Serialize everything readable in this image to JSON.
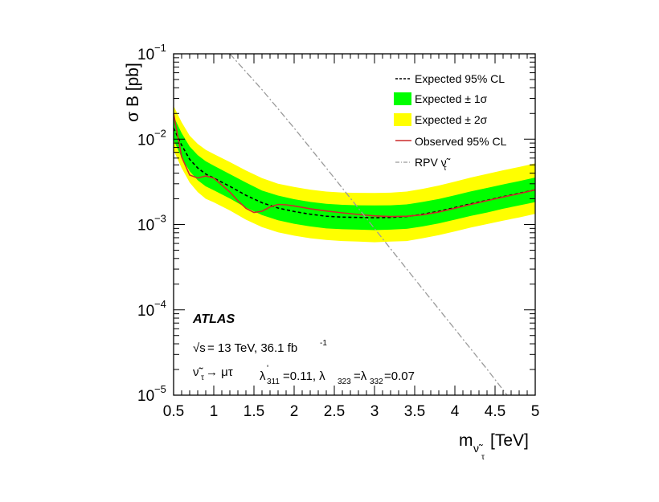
{
  "chart_data": {
    "type": "line",
    "ylabel": "σ B [pb]",
    "xlabel_main": "m",
    "xlabel_sub": "ν̃",
    "xlabel_subsub": "τ",
    "xlabel_unit": "[TeV]",
    "yscale": "log",
    "xlim": [
      0.5,
      5.0
    ],
    "ylim": [
      1e-05,
      0.1
    ],
    "xticks": [
      0.5,
      1,
      1.5,
      2,
      2.5,
      3,
      3.5,
      4,
      4.5,
      5
    ],
    "xtick_labels": [
      "0.5",
      "1",
      "1.5",
      "2",
      "2.5",
      "3",
      "3.5",
      "4",
      "4.5",
      "5"
    ],
    "yticks": [
      1e-05,
      0.0001,
      0.001,
      0.01,
      0.1
    ],
    "ytick_base": "10",
    "ytick_exps": [
      "−5",
      "−4",
      "−3",
      "−2",
      "−1"
    ],
    "grid": false,
    "legend_position": "top-right",
    "legend": [
      {
        "label": "Expected 95% CL",
        "style": "dashed-line",
        "color": "#000000"
      },
      {
        "label": "Expected ± 1σ",
        "style": "fill",
        "color": "#00ff00"
      },
      {
        "label": "Expected ± 2σ",
        "style": "fill",
        "color": "#ffff00"
      },
      {
        "label": "Observed 95% CL",
        "style": "line",
        "color": "#cc0000"
      },
      {
        "label": "RPV ν̃",
        "label_sub": "τ",
        "style": "dash-dot-line",
        "color": "#999999"
      }
    ],
    "annotations": {
      "experiment": "ATLAS",
      "energy_prefix": "√s",
      "energy": " = 13 TeV, 36.1 fb",
      "energy_sup": "-1",
      "process": "ν̃",
      "process_sub": "τ",
      "process_rest": " → μτ",
      "couplings_l311": "λ",
      "couplings_l311_sub": "311",
      "couplings_prime": "'",
      "couplings_text1": "=0.11, λ",
      "couplings_sub2": "323",
      "couplings_text2": "=λ",
      "couplings_sub3": "332",
      "couplings_text3": "=0.07"
    },
    "series": [
      {
        "name": "Expected 95% CL",
        "x": [
          0.5,
          0.6,
          0.7,
          0.8,
          0.9,
          1.0,
          1.2,
          1.4,
          1.6,
          1.8,
          2.0,
          2.2,
          2.4,
          2.6,
          2.8,
          3.0,
          3.2,
          3.4,
          3.6,
          3.8,
          4.0,
          4.2,
          4.4,
          4.6,
          4.8,
          5.0
        ],
        "y": [
          0.0135,
          0.0085,
          0.0058,
          0.0046,
          0.0039,
          0.0035,
          0.0028,
          0.0022,
          0.0018,
          0.00156,
          0.00142,
          0.00132,
          0.00125,
          0.00122,
          0.00121,
          0.0012,
          0.00121,
          0.00124,
          0.00132,
          0.00143,
          0.00158,
          0.00175,
          0.00192,
          0.00212,
          0.00232,
          0.00255
        ]
      },
      {
        "name": "Expected ± 1σ",
        "x": [
          0.5,
          0.6,
          0.7,
          0.8,
          0.9,
          1.0,
          1.2,
          1.4,
          1.6,
          1.8,
          2.0,
          2.2,
          2.4,
          2.6,
          2.8,
          3.0,
          3.2,
          3.4,
          3.6,
          3.8,
          4.0,
          4.2,
          4.4,
          4.6,
          4.8,
          5.0
        ],
        "upper": [
          0.0185,
          0.0118,
          0.0082,
          0.0065,
          0.0055,
          0.0049,
          0.0039,
          0.0031,
          0.0025,
          0.00218,
          0.00198,
          0.00184,
          0.00175,
          0.0017,
          0.00168,
          0.00167,
          0.00168,
          0.00172,
          0.00184,
          0.00199,
          0.0022,
          0.00244,
          0.00268,
          0.00295,
          0.00322,
          0.00355
        ],
        "lower": [
          0.0098,
          0.0061,
          0.0042,
          0.0033,
          0.0028,
          0.00252,
          0.00202,
          0.00158,
          0.00129,
          0.00112,
          0.00102,
          0.00095,
          0.0009,
          0.00088,
          0.00087,
          0.00086,
          0.00087,
          0.00089,
          0.00095,
          0.00103,
          0.00114,
          0.00126,
          0.00138,
          0.00153,
          0.00167,
          0.00183
        ]
      },
      {
        "name": "Expected ± 2σ",
        "x": [
          0.5,
          0.6,
          0.7,
          0.8,
          0.9,
          1.0,
          1.2,
          1.4,
          1.6,
          1.8,
          2.0,
          2.2,
          2.4,
          2.6,
          2.8,
          3.0,
          3.2,
          3.4,
          3.6,
          3.8,
          4.0,
          4.2,
          4.4,
          4.6,
          4.8,
          5.0
        ],
        "upper": [
          0.0245,
          0.0158,
          0.011,
          0.0088,
          0.0075,
          0.0067,
          0.0054,
          0.0043,
          0.0035,
          0.003,
          0.00275,
          0.00256,
          0.00243,
          0.00237,
          0.00235,
          0.00234,
          0.00236,
          0.00243,
          0.00262,
          0.00286,
          0.00318,
          0.00355,
          0.00392,
          0.00432,
          0.00472,
          0.0052
        ],
        "lower": [
          0.0074,
          0.0046,
          0.0031,
          0.0024,
          0.002,
          0.00182,
          0.00146,
          0.00114,
          0.00093,
          0.00081,
          0.00074,
          0.00069,
          0.00066,
          0.00064,
          0.00063,
          0.00062,
          0.00063,
          0.00064,
          0.00069,
          0.00075,
          0.00083,
          0.00092,
          0.00101,
          0.00111,
          0.00121,
          0.00133
        ]
      },
      {
        "name": "Observed 95% CL",
        "x": [
          0.5,
          0.6,
          0.7,
          0.8,
          0.9,
          1.0,
          1.1,
          1.2,
          1.3,
          1.4,
          1.5,
          1.6,
          1.7,
          1.8,
          1.9,
          2.0,
          2.2,
          2.4,
          2.6,
          2.8,
          3.0,
          3.2,
          3.4,
          3.6,
          3.8,
          4.0,
          4.2,
          4.4,
          4.6,
          4.8,
          5.0
        ],
        "y": [
          0.02,
          0.0062,
          0.0038,
          0.0035,
          0.0037,
          0.0035,
          0.0029,
          0.0024,
          0.0019,
          0.00155,
          0.00138,
          0.00143,
          0.0016,
          0.00172,
          0.0017,
          0.00165,
          0.00153,
          0.00144,
          0.00137,
          0.00131,
          0.00126,
          0.00124,
          0.00125,
          0.0013,
          0.0014,
          0.00155,
          0.00172,
          0.0019,
          0.0021,
          0.0023,
          0.00255
        ]
      },
      {
        "name": "RPV ν̃τ",
        "x": [
          1.2,
          1.6,
          2.0,
          2.4,
          2.8,
          3.2,
          3.6,
          4.0,
          4.4,
          4.65
        ],
        "y": [
          0.1,
          0.038,
          0.0135,
          0.0046,
          0.00155,
          0.00052,
          0.000175,
          5.95e-05,
          2.02e-05,
          1e-05
        ]
      }
    ]
  }
}
